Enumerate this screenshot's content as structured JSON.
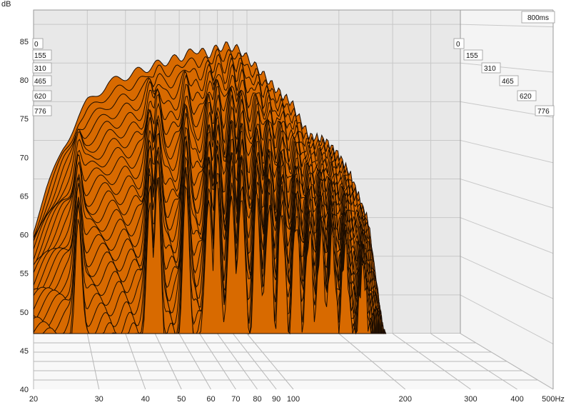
{
  "chart_data": {
    "type": "waterfall",
    "ylabel": "dB",
    "xunit": "Hz",
    "ylim": [
      40,
      87
    ],
    "y_ticks": [
      "40",
      "45",
      "50",
      "55",
      "60",
      "65",
      "70",
      "75",
      "80",
      "85"
    ],
    "x_scale": "log",
    "xlim": [
      20,
      500
    ],
    "x_ticks": [
      "20",
      "30",
      "40",
      "50",
      "60",
      "70",
      "80",
      "90",
      "100",
      "200",
      "300",
      "400",
      "500Hz"
    ],
    "x_tick_values": [
      20,
      30,
      40,
      50,
      60,
      70,
      80,
      90,
      100,
      200,
      300,
      400,
      500
    ],
    "time_window_label": "800ms",
    "time_labels_left": [
      "0",
      "155",
      "310",
      "465",
      "620",
      "776"
    ],
    "time_labels_right": [
      "0",
      "155",
      "310",
      "465",
      "620",
      "776"
    ],
    "time_range_ms": [
      0,
      776
    ],
    "slice_count": 26,
    "floor_db": 47,
    "initial_response_db": {
      "freq_hz": [
        20,
        22,
        25,
        28,
        30,
        35,
        40,
        45,
        50,
        55,
        60,
        65,
        68,
        70,
        75,
        80,
        85,
        90,
        95,
        100,
        110,
        120,
        130,
        140,
        150,
        160,
        180,
        200,
        220,
        250,
        280
      ],
      "level_db": [
        61,
        66,
        72,
        76,
        78,
        80.5,
        81.5,
        82.3,
        83.0,
        83.6,
        84.0,
        84.6,
        85.2,
        84.8,
        84.5,
        85.3,
        85.6,
        85.4,
        85.0,
        84.0,
        82.3,
        80.5,
        79.0,
        78.0,
        75.5,
        73.5,
        73.0,
        71.0,
        68.0,
        62.0,
        47.0
      ]
    },
    "colors": {
      "surface": "#d86a00",
      "edge": "#1a0c00",
      "wall": "#e8e8e8",
      "floor": "#f8f8f8"
    }
  }
}
